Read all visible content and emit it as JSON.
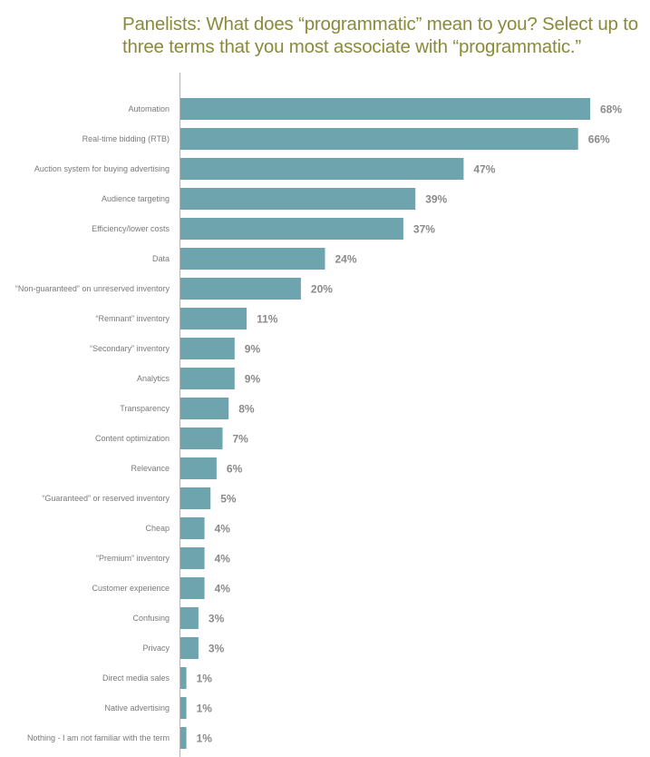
{
  "header": {
    "title": "Panelists: What does “programmatic” mean to you? Select up to three terms that you most associate with “programmatic.”"
  },
  "colors": {
    "bar": "#6ea4ae",
    "title": "#8a8a3a",
    "axis": "#b5b5b5"
  },
  "chart_data": {
    "type": "bar",
    "orientation": "horizontal",
    "title": "Panelists: What does “programmatic” mean to you? Select up to three terms that you most associate with “programmatic.”",
    "categories": [
      "Automation",
      "Real-time bidding (RTB)",
      "Auction system for buying advertising",
      "Audience targeting",
      "Efficiency/lower costs",
      "Data",
      "“Non-guaranteed” on unreserved inventory",
      "“Remnant” inventory",
      "“Secondary” inventory",
      "Analytics",
      "Transparency",
      "Content optimization",
      "Relevance",
      "“Guaranteed” or reserved inventory",
      "Cheap",
      "“Premium” inventory",
      "Customer experience",
      "Confusing",
      "Privacy",
      "Direct media sales",
      "Native advertising",
      "Nothing - I am not familiar with the term"
    ],
    "values": [
      68,
      66,
      47,
      39,
      37,
      24,
      20,
      11,
      9,
      9,
      8,
      7,
      6,
      5,
      4,
      4,
      4,
      3,
      3,
      1,
      1,
      1
    ],
    "value_labels": [
      "68%",
      "66%",
      "47%",
      "39%",
      "37%",
      "24%",
      "20%",
      "11%",
      "9%",
      "9%",
      "8%",
      "7%",
      "6%",
      "5%",
      "4%",
      "4%",
      "4%",
      "3%",
      "3%",
      "1%",
      "1%",
      "1%"
    ],
    "unit": "%",
    "xlim": [
      0,
      70
    ],
    "grid": false,
    "legend": "none"
  }
}
